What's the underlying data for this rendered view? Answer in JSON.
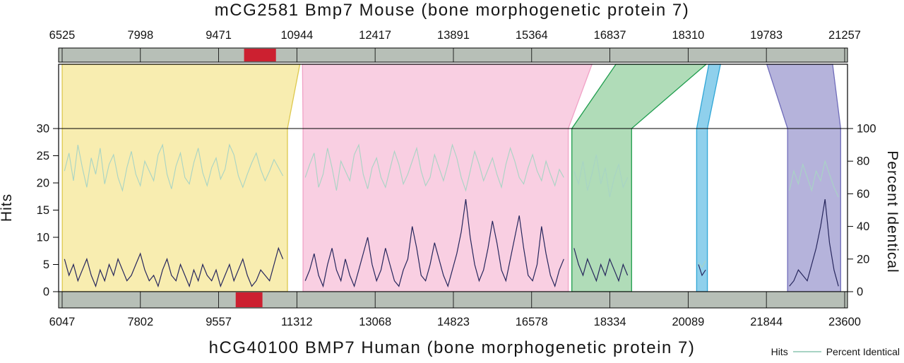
{
  "title_top": "mCG2581 Bmp7 Mouse (bone morphogenetic protein 7)",
  "legend": {
    "hits": "Hits",
    "pct": "Percent Identical"
  },
  "colors": {
    "bar": "#b7bfb7",
    "red_marker": "#cc2030",
    "plot_border": "#000000",
    "hits_line": "#26265c",
    "pct_line": "#a8d4c4",
    "regions": {
      "yellow": {
        "fill": "#f8edb0",
        "stroke": "#ddc84e"
      },
      "pink": {
        "fill": "#f9cfe2",
        "stroke": "#f0a2c6"
      },
      "green": {
        "fill": "#b0dcb8",
        "stroke": "#1f9d4e"
      },
      "blue": {
        "fill": "#8fd0ec",
        "stroke": "#2fa6d6"
      },
      "purple": {
        "fill": "#b5b3db",
        "stroke": "#6f6cba"
      }
    }
  },
  "chart_data": {
    "type": "line",
    "title": "mCG2581 Bmp7 Mouse (bone morphogenetic protein 7)",
    "xlabel_bottom": "hCG40100 BMP7 Human (bone morphogenetic protein 7)",
    "ylabel_left": "Hits",
    "ylabel_right": "Percent Identical",
    "left_range": [
      0,
      30
    ],
    "right_range": [
      0,
      100
    ],
    "left_ticks": [
      30,
      25,
      20,
      15,
      10,
      5,
      0
    ],
    "right_ticks": [
      100,
      80,
      60,
      40,
      20,
      0
    ],
    "top_axis": {
      "range": [
        6525,
        21257
      ],
      "ticks": [
        6525,
        7998,
        9471,
        10944,
        12417,
        13891,
        15364,
        16837,
        18310,
        19783,
        21257
      ]
    },
    "bottom_axis": {
      "range": [
        6047,
        23600
      ],
      "ticks": [
        6047,
        7802,
        9557,
        11312,
        13068,
        14823,
        16578,
        18334,
        20089,
        21844,
        23600
      ]
    },
    "markers": {
      "mouse_red": [
        9950,
        10550
      ],
      "human_red": [
        9940,
        10540
      ]
    },
    "regions": [
      {
        "name": "aligned-region-1",
        "color": "yellow",
        "mouse": [
          6525,
          11000
        ],
        "human": [
          6050,
          11100
        ],
        "series": {
          "x_start": 6100,
          "x_step": 100,
          "hits": [
            6,
            3,
            5,
            2,
            4,
            6,
            3,
            1,
            4,
            2,
            5,
            3,
            6,
            4,
            2,
            3,
            5,
            7,
            4,
            2,
            3,
            1,
            4,
            6,
            3,
            2,
            5,
            3,
            1,
            4,
            2,
            5,
            3,
            2,
            4,
            1,
            3,
            5,
            2,
            4,
            6,
            3,
            1,
            2,
            4,
            3,
            2,
            5,
            8,
            6
          ],
          "pct": [
            74,
            85,
            68,
            90,
            76,
            64,
            82,
            72,
            88,
            66,
            78,
            84,
            70,
            62,
            76,
            86,
            72,
            65,
            80,
            74,
            68,
            84,
            90,
            72,
            63,
            77,
            85,
            70,
            66,
            79,
            88,
            73,
            65,
            76,
            82,
            69,
            75,
            90,
            84,
            71,
            64,
            72,
            79,
            85,
            75,
            68,
            74,
            81,
            76,
            71
          ]
        }
      },
      {
        "name": "aligned-region-2",
        "color": "pink",
        "mouse": [
          11050,
          16500
        ],
        "human": [
          11450,
          17400
        ],
        "series": {
          "x_start": 11500,
          "x_step": 100,
          "hits": [
            2,
            4,
            7,
            3,
            1,
            5,
            8,
            4,
            2,
            6,
            3,
            1,
            4,
            7,
            10,
            5,
            2,
            4,
            8,
            5,
            2,
            1,
            4,
            6,
            12,
            8,
            3,
            2,
            5,
            9,
            6,
            3,
            1,
            4,
            7,
            11,
            17,
            10,
            5,
            2,
            4,
            8,
            13,
            9,
            4,
            2,
            6,
            10,
            14,
            8,
            3,
            2,
            5,
            12,
            7,
            3,
            1,
            4,
            6
          ],
          "pct": [
            70,
            78,
            85,
            64,
            72,
            88,
            76,
            62,
            80,
            74,
            68,
            84,
            90,
            72,
            63,
            76,
            82,
            70,
            64,
            75,
            86,
            78,
            66,
            72,
            80,
            88,
            74,
            65,
            70,
            84,
            76,
            68,
            78,
            90,
            82,
            70,
            62,
            74,
            86,
            78,
            68,
            75,
            82,
            72,
            64,
            78,
            88,
            80,
            70,
            66,
            76,
            84,
            74,
            68,
            80,
            72,
            65,
            75,
            70
          ]
        }
      },
      {
        "name": "aligned-region-3",
        "color": "green",
        "mouse": [
          16950,
          18650
        ],
        "human": [
          17480,
          18820
        ],
        "series": {
          "x_start": 17530,
          "x_step": 100,
          "hits": [
            8,
            5,
            3,
            6,
            4,
            2,
            5,
            3,
            6,
            4,
            2,
            5,
            3
          ],
          "pct": [
            74,
            66,
            80,
            62,
            72,
            84,
            66,
            76,
            58,
            70,
            78,
            64,
            70
          ]
        }
      },
      {
        "name": "aligned-region-4",
        "color": "blue",
        "mouse": [
          18700,
          18920
        ],
        "human": [
          20280,
          20520
        ],
        "series": {
          "x_start": 20320,
          "x_step": 80,
          "hits": [
            5,
            3,
            4
          ],
          "pct": [
            18,
            15,
            19
          ]
        }
      },
      {
        "name": "aligned-region-5",
        "color": "purple",
        "mouse": [
          19790,
          21030
        ],
        "human": [
          22320,
          23510
        ],
        "series": {
          "x_start": 22360,
          "x_step": 100,
          "hits": [
            1,
            2,
            4,
            3,
            2,
            5,
            8,
            12,
            17,
            9,
            4,
            1
          ],
          "pct": [
            62,
            74,
            66,
            78,
            70,
            62,
            74,
            68,
            80,
            72,
            64,
            58
          ]
        }
      }
    ]
  }
}
